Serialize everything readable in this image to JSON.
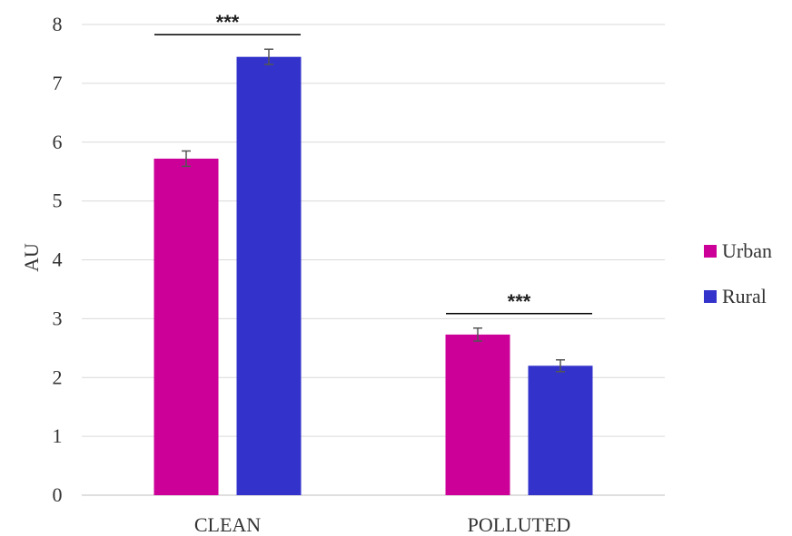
{
  "chart_data": {
    "type": "bar",
    "title": "",
    "xlabel": "",
    "ylabel": "AU",
    "ylim": [
      0,
      8
    ],
    "yticks": [
      0,
      1,
      2,
      3,
      4,
      5,
      6,
      7,
      8
    ],
    "grid": true,
    "legend_position": "right",
    "categories": [
      "CLEAN",
      "POLLUTED"
    ],
    "series": [
      {
        "name": "Urban",
        "color": "#CC0099",
        "values": [
          5.72,
          2.73
        ],
        "errors": [
          0.13,
          0.11
        ]
      },
      {
        "name": "Rural",
        "color": "#3333CC",
        "values": [
          7.45,
          2.2
        ],
        "errors": [
          0.13,
          0.1
        ]
      }
    ],
    "annotations": [
      {
        "category": "CLEAN",
        "text": "***"
      },
      {
        "category": "POLLUTED",
        "text": "***"
      }
    ]
  }
}
